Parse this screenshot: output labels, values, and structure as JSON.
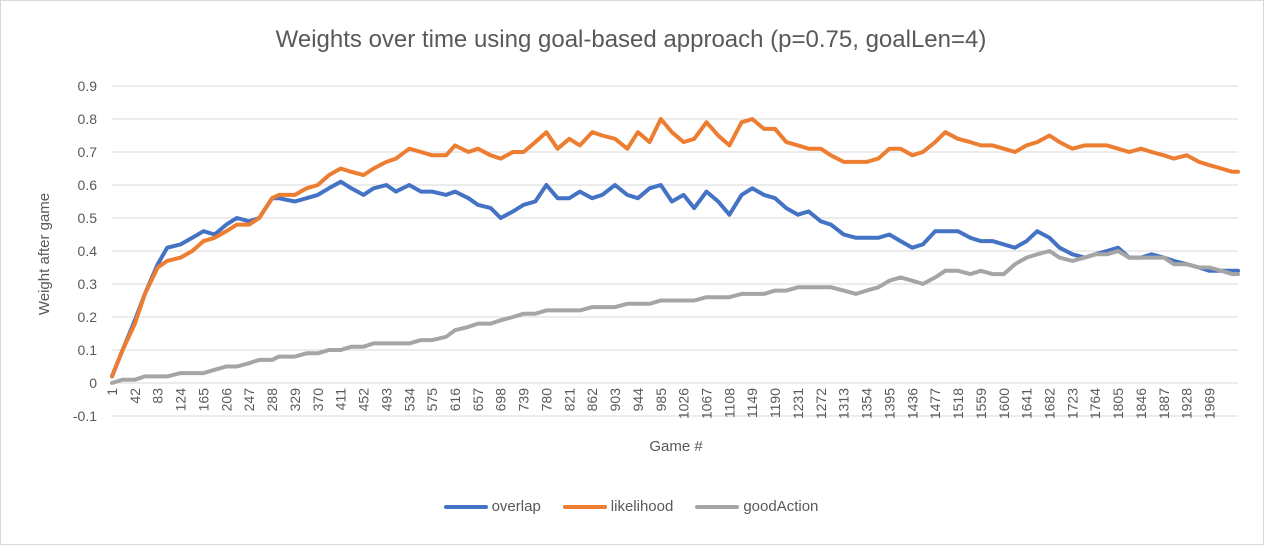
{
  "chart_data": {
    "type": "line",
    "title": "Weights over time using goal-based approach (p=0.75, goalLen=4)",
    "xlabel": "Game #",
    "ylabel": "Weight after game",
    "ylim": [
      -0.1,
      0.9
    ],
    "yticks": [
      "-0.1",
      "0",
      "0.1",
      "0.2",
      "0.3",
      "0.4",
      "0.5",
      "0.6",
      "0.7",
      "0.8",
      "0.9"
    ],
    "xlim": [
      1,
      2020
    ],
    "xticks": [
      "1",
      "42",
      "83",
      "124",
      "165",
      "206",
      "247",
      "288",
      "329",
      "370",
      "411",
      "452",
      "493",
      "534",
      "575",
      "616",
      "657",
      "698",
      "739",
      "780",
      "821",
      "862",
      "903",
      "944",
      "985",
      "1026",
      "1067",
      "1108",
      "1149",
      "1190",
      "1231",
      "1272",
      "1313",
      "1354",
      "1395",
      "1436",
      "1477",
      "1518",
      "1559",
      "1600",
      "1641",
      "1682",
      "1723",
      "1764",
      "1805",
      "1846",
      "1887",
      "1928",
      "1969"
    ],
    "grid": true,
    "legend_position": "bottom",
    "series": [
      {
        "name": "overlap",
        "color": "#4472c4",
        "x": [
          1,
          20,
          42,
          60,
          83,
          100,
          124,
          145,
          165,
          185,
          206,
          225,
          247,
          265,
          288,
          300,
          329,
          350,
          370,
          390,
          411,
          430,
          452,
          470,
          493,
          510,
          534,
          555,
          575,
          600,
          616,
          640,
          657,
          680,
          698,
          720,
          739,
          760,
          780,
          800,
          821,
          840,
          862,
          880,
          903,
          925,
          944,
          965,
          985,
          1005,
          1026,
          1045,
          1067,
          1088,
          1108,
          1130,
          1149,
          1170,
          1190,
          1210,
          1231,
          1250,
          1272,
          1290,
          1313,
          1335,
          1354,
          1375,
          1395,
          1415,
          1436,
          1455,
          1477,
          1495,
          1518,
          1540,
          1559,
          1580,
          1600,
          1620,
          1641,
          1660,
          1682,
          1700,
          1723,
          1745,
          1764,
          1785,
          1805,
          1825,
          1846,
          1865,
          1887,
          1905,
          1928,
          1950,
          1969,
          1990,
          2010,
          2020
        ],
        "values": [
          0.02,
          0.1,
          0.19,
          0.27,
          0.36,
          0.41,
          0.42,
          0.44,
          0.46,
          0.45,
          0.48,
          0.5,
          0.49,
          0.5,
          0.56,
          0.56,
          0.55,
          0.56,
          0.57,
          0.59,
          0.61,
          0.59,
          0.57,
          0.59,
          0.6,
          0.58,
          0.6,
          0.58,
          0.58,
          0.57,
          0.58,
          0.56,
          0.54,
          0.53,
          0.5,
          0.52,
          0.54,
          0.55,
          0.6,
          0.56,
          0.56,
          0.58,
          0.56,
          0.57,
          0.6,
          0.57,
          0.56,
          0.59,
          0.6,
          0.55,
          0.57,
          0.53,
          0.58,
          0.55,
          0.51,
          0.57,
          0.59,
          0.57,
          0.56,
          0.53,
          0.51,
          0.52,
          0.49,
          0.48,
          0.45,
          0.44,
          0.44,
          0.44,
          0.45,
          0.43,
          0.41,
          0.42,
          0.46,
          0.46,
          0.46,
          0.44,
          0.43,
          0.43,
          0.42,
          0.41,
          0.43,
          0.46,
          0.44,
          0.41,
          0.39,
          0.38,
          0.39,
          0.4,
          0.41,
          0.38,
          0.38,
          0.39,
          0.38,
          0.37,
          0.36,
          0.35,
          0.34,
          0.34,
          0.34,
          0.34
        ]
      },
      {
        "name": "likelihood",
        "color": "#ed7d31",
        "x": [
          1,
          20,
          42,
          60,
          83,
          100,
          124,
          145,
          165,
          185,
          206,
          225,
          247,
          265,
          288,
          300,
          329,
          350,
          370,
          390,
          411,
          430,
          452,
          470,
          493,
          510,
          534,
          555,
          575,
          600,
          616,
          640,
          657,
          680,
          698,
          720,
          739,
          760,
          780,
          800,
          821,
          840,
          862,
          880,
          903,
          925,
          944,
          965,
          985,
          1005,
          1026,
          1045,
          1067,
          1088,
          1108,
          1130,
          1149,
          1170,
          1190,
          1210,
          1231,
          1250,
          1272,
          1290,
          1313,
          1335,
          1354,
          1375,
          1395,
          1415,
          1436,
          1455,
          1477,
          1495,
          1518,
          1540,
          1559,
          1580,
          1600,
          1620,
          1641,
          1660,
          1682,
          1700,
          1723,
          1745,
          1764,
          1785,
          1805,
          1825,
          1846,
          1865,
          1887,
          1905,
          1928,
          1950,
          1969,
          1990,
          2010,
          2020
        ],
        "values": [
          0.02,
          0.1,
          0.18,
          0.27,
          0.35,
          0.37,
          0.38,
          0.4,
          0.43,
          0.44,
          0.46,
          0.48,
          0.48,
          0.5,
          0.56,
          0.57,
          0.57,
          0.59,
          0.6,
          0.63,
          0.65,
          0.64,
          0.63,
          0.65,
          0.67,
          0.68,
          0.71,
          0.7,
          0.69,
          0.69,
          0.72,
          0.7,
          0.71,
          0.69,
          0.68,
          0.7,
          0.7,
          0.73,
          0.76,
          0.71,
          0.74,
          0.72,
          0.76,
          0.75,
          0.74,
          0.71,
          0.76,
          0.73,
          0.8,
          0.76,
          0.73,
          0.74,
          0.79,
          0.75,
          0.72,
          0.79,
          0.8,
          0.77,
          0.77,
          0.73,
          0.72,
          0.71,
          0.71,
          0.69,
          0.67,
          0.67,
          0.67,
          0.68,
          0.71,
          0.71,
          0.69,
          0.7,
          0.73,
          0.76,
          0.74,
          0.73,
          0.72,
          0.72,
          0.71,
          0.7,
          0.72,
          0.73,
          0.75,
          0.73,
          0.71,
          0.72,
          0.72,
          0.72,
          0.71,
          0.7,
          0.71,
          0.7,
          0.69,
          0.68,
          0.69,
          0.67,
          0.66,
          0.65,
          0.64,
          0.64
        ]
      },
      {
        "name": "goodAction",
        "color": "#a5a5a5",
        "x": [
          1,
          20,
          42,
          60,
          83,
          100,
          124,
          145,
          165,
          185,
          206,
          225,
          247,
          265,
          288,
          300,
          329,
          350,
          370,
          390,
          411,
          430,
          452,
          470,
          493,
          510,
          534,
          555,
          575,
          600,
          616,
          640,
          657,
          680,
          698,
          720,
          739,
          760,
          780,
          800,
          821,
          840,
          862,
          880,
          903,
          925,
          944,
          965,
          985,
          1005,
          1026,
          1045,
          1067,
          1088,
          1108,
          1130,
          1149,
          1170,
          1190,
          1210,
          1231,
          1250,
          1272,
          1290,
          1313,
          1335,
          1354,
          1375,
          1395,
          1415,
          1436,
          1455,
          1477,
          1495,
          1518,
          1540,
          1559,
          1580,
          1600,
          1620,
          1641,
          1660,
          1682,
          1700,
          1723,
          1745,
          1764,
          1785,
          1805,
          1825,
          1846,
          1865,
          1887,
          1905,
          1928,
          1950,
          1969,
          1990,
          2010,
          2020
        ],
        "values": [
          0.0,
          0.01,
          0.01,
          0.02,
          0.02,
          0.02,
          0.03,
          0.03,
          0.03,
          0.04,
          0.05,
          0.05,
          0.06,
          0.07,
          0.07,
          0.08,
          0.08,
          0.09,
          0.09,
          0.1,
          0.1,
          0.11,
          0.11,
          0.12,
          0.12,
          0.12,
          0.12,
          0.13,
          0.13,
          0.14,
          0.16,
          0.17,
          0.18,
          0.18,
          0.19,
          0.2,
          0.21,
          0.21,
          0.22,
          0.22,
          0.22,
          0.22,
          0.23,
          0.23,
          0.23,
          0.24,
          0.24,
          0.24,
          0.25,
          0.25,
          0.25,
          0.25,
          0.26,
          0.26,
          0.26,
          0.27,
          0.27,
          0.27,
          0.28,
          0.28,
          0.29,
          0.29,
          0.29,
          0.29,
          0.28,
          0.27,
          0.28,
          0.29,
          0.31,
          0.32,
          0.31,
          0.3,
          0.32,
          0.34,
          0.34,
          0.33,
          0.34,
          0.33,
          0.33,
          0.36,
          0.38,
          0.39,
          0.4,
          0.38,
          0.37,
          0.38,
          0.39,
          0.39,
          0.4,
          0.38,
          0.38,
          0.38,
          0.38,
          0.36,
          0.36,
          0.35,
          0.35,
          0.34,
          0.33,
          0.33
        ]
      }
    ]
  }
}
